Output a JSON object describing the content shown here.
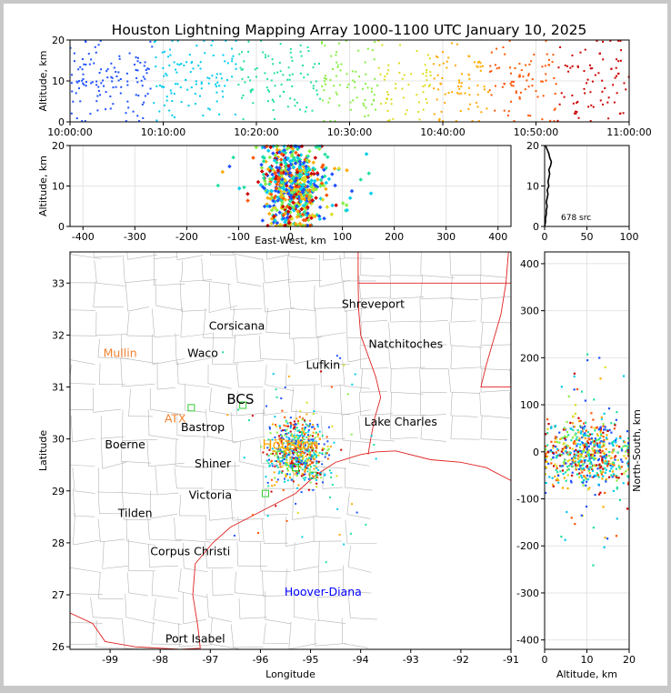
{
  "chart_data": {
    "type": "scatter",
    "title": "Houston Lightning Mapping Array 1000-1100 UTC January 10, 2025",
    "time_altitude": {
      "xlabel": "",
      "ylabel": "Altitude, km",
      "x_ticks": [
        "10:00:00",
        "10:10:00",
        "10:20:00",
        "10:30:00",
        "10:40:00",
        "10:50:00",
        "11:00:00"
      ],
      "xlim_minutes": [
        0,
        60
      ],
      "ylim": [
        0,
        20
      ],
      "y_ticks": [
        0,
        10,
        20
      ]
    },
    "eastwest_altitude": {
      "xlabel": "East-West, km",
      "ylabel": "Altitude, km",
      "xlim": [
        -425,
        425
      ],
      "x_ticks": [
        -400,
        -300,
        -200,
        -100,
        0,
        100,
        200,
        300,
        400
      ],
      "ylim": [
        0,
        20
      ],
      "y_ticks": [
        0,
        10,
        20
      ]
    },
    "altitude_histogram": {
      "xlim": [
        0,
        100
      ],
      "x_ticks": [
        0,
        50,
        100
      ],
      "ylim": [
        0,
        20
      ],
      "y_ticks": [
        0,
        10,
        20
      ],
      "source_count_label": "678 src",
      "profile": [
        [
          0,
          0
        ],
        [
          1,
          1
        ],
        [
          1,
          2
        ],
        [
          2,
          3
        ],
        [
          2,
          4
        ],
        [
          3,
          5
        ],
        [
          2,
          6
        ],
        [
          3,
          7
        ],
        [
          4,
          8
        ],
        [
          3,
          9
        ],
        [
          5,
          10
        ],
        [
          4,
          11
        ],
        [
          5,
          12
        ],
        [
          6,
          13
        ],
        [
          5,
          14
        ],
        [
          7,
          15
        ],
        [
          8,
          16
        ],
        [
          6,
          17
        ],
        [
          5,
          18
        ],
        [
          3,
          19
        ],
        [
          1,
          20
        ]
      ]
    },
    "plan_view": {
      "xlabel": "Longitude",
      "ylabel": "Latitude",
      "xlim": [
        -99.8,
        -91.0
      ],
      "ylim": [
        25.95,
        33.6
      ],
      "x_ticks": [
        -99,
        -98,
        -97,
        -96,
        -95,
        -94,
        -93,
        -92,
        -91
      ],
      "y_ticks": [
        26,
        27,
        28,
        29,
        30,
        31,
        32,
        33
      ],
      "places": [
        {
          "name": "Shreveport",
          "lon": -93.75,
          "lat": 32.52,
          "color": "#000000"
        },
        {
          "name": "Corsicana",
          "lon": -96.47,
          "lat": 32.1,
          "color": "#000000"
        },
        {
          "name": "Natchitoches",
          "lon": -93.1,
          "lat": 31.75,
          "color": "#000000"
        },
        {
          "name": "Mullin",
          "lon": -98.8,
          "lat": 31.58,
          "color": "#f08030"
        },
        {
          "name": "Waco",
          "lon": -97.15,
          "lat": 31.58,
          "color": "#000000"
        },
        {
          "name": "Lufkin",
          "lon": -94.75,
          "lat": 31.35,
          "color": "#000000"
        },
        {
          "name": "BCS",
          "lon": -96.4,
          "lat": 30.68,
          "color": "#000000"
        },
        {
          "name": "ATX",
          "lon": -97.7,
          "lat": 30.32,
          "color": "#f08030"
        },
        {
          "name": "Lake Charles",
          "lon": -93.2,
          "lat": 30.26,
          "color": "#000000"
        },
        {
          "name": "Bastrop",
          "lon": -97.15,
          "lat": 30.15,
          "color": "#000000"
        },
        {
          "name": "Boerne",
          "lon": -98.7,
          "lat": 29.82,
          "color": "#000000"
        },
        {
          "name": "Houston",
          "lon": -95.4,
          "lat": 29.8,
          "color": "#ffa500"
        },
        {
          "name": "Shiner",
          "lon": -96.95,
          "lat": 29.45,
          "color": "#000000"
        },
        {
          "name": "Victoria",
          "lon": -97.0,
          "lat": 28.85,
          "color": "#000000"
        },
        {
          "name": "Tilden",
          "lon": -98.5,
          "lat": 28.5,
          "color": "#000000"
        },
        {
          "name": "Corpus Christi",
          "lon": -97.4,
          "lat": 27.76,
          "color": "#000000"
        },
        {
          "name": "Hoover-Diana",
          "lon": -94.75,
          "lat": 26.98,
          "color": "#0000ff"
        },
        {
          "name": "Port Isabel",
          "lon": -97.3,
          "lat": 26.08,
          "color": "#000000"
        }
      ],
      "stations": [
        {
          "lon": -97.38,
          "lat": 30.6
        },
        {
          "lon": -96.35,
          "lat": 30.65
        },
        {
          "lon": -95.9,
          "lat": 28.95
        },
        {
          "lon": -95.3,
          "lat": 29.45
        },
        {
          "lon": -94.95,
          "lat": 29.3
        },
        {
          "lon": -95.6,
          "lat": 29.7
        }
      ],
      "station_color": "#33cc33"
    },
    "northsouth_altitude": {
      "xlabel": "Altitude, km",
      "ylabel": "North-South, km",
      "xlim": [
        0,
        20
      ],
      "x_ticks": [
        0,
        10,
        20
      ],
      "ylim": [
        -420,
        425
      ],
      "y_ticks": [
        -400,
        -300,
        -200,
        -100,
        0,
        100,
        200,
        300,
        400
      ]
    },
    "source_count": 678,
    "color_scale": "time: blue (10:00) to red (11:00)",
    "grid": true
  }
}
